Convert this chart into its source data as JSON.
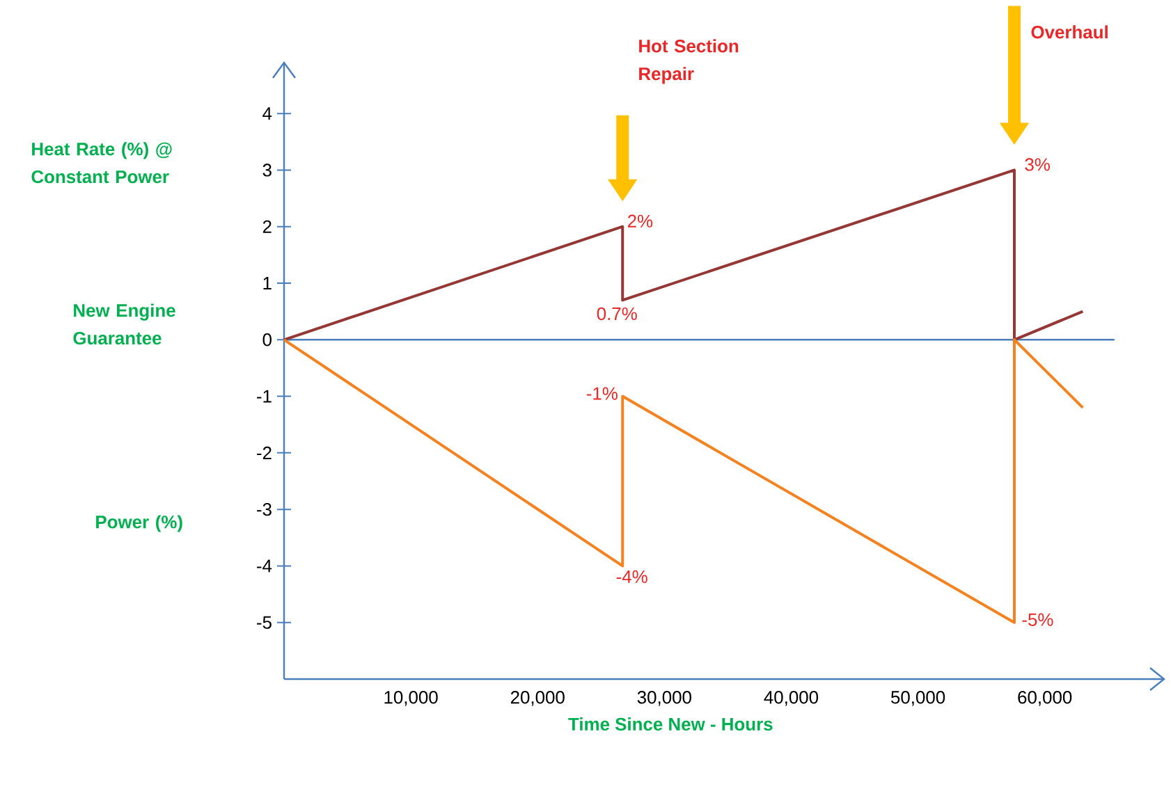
{
  "chart_data": {
    "type": "line",
    "xlabel": "Time Since New - Hours",
    "xlim": [
      0,
      69300
    ],
    "ylim": [
      -6,
      4.9
    ],
    "xticks": [
      {
        "value": 10000,
        "label": "10,000"
      },
      {
        "value": 20000,
        "label": "20,000"
      },
      {
        "value": 30000,
        "label": "30,000"
      },
      {
        "value": 40000,
        "label": "40,000"
      },
      {
        "value": 50000,
        "label": "50,000"
      },
      {
        "value": 60000,
        "label": "60,000"
      }
    ],
    "yticks": [
      -5,
      -4,
      -3,
      -2,
      -1,
      0,
      1,
      2,
      3,
      4
    ],
    "series": [
      {
        "color": "#953735",
        "x": [
          0,
          26700,
          26700,
          57600,
          57600,
          63000
        ],
        "values": [
          0,
          2,
          0.7,
          3,
          0,
          0.5
        ],
        "value_labels": [
          null,
          "2%",
          "0.7%",
          "3%",
          null,
          null
        ]
      },
      {
        "color": "#f58220",
        "x": [
          0,
          26700,
          26700,
          57600,
          57600,
          63000
        ],
        "values": [
          0,
          -4,
          -1,
          -5,
          0,
          -1.2
        ],
        "value_labels": [
          null,
          "-4%",
          "-1%",
          "-5%",
          null,
          null
        ]
      }
    ],
    "ref_lines": [
      {
        "axis": "y",
        "value": 0,
        "color": "#4a7ebb"
      }
    ],
    "annotations": [
      "Hot Section Repair",
      "Overhaul",
      "Heat Rate (%) @ Constant Power",
      "New Engine Guarantee",
      "Power (%)"
    ]
  }
}
